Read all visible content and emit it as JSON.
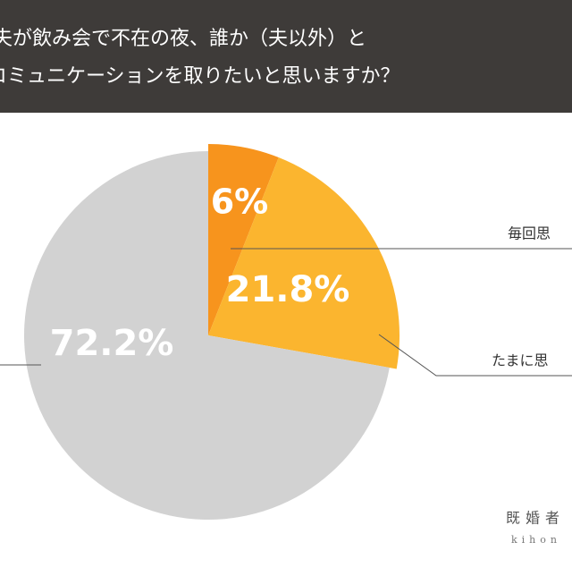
{
  "chart_data": {
    "type": "pie",
    "title_lines": [
      "夫が飲み会で不在の夜、誰か（夫以外）と",
      "コミュニケーションを取りたいと思いますか？"
    ],
    "categories": [
      "毎回思",
      "たまに思",
      null
    ],
    "values": [
      6,
      21.8,
      72.2
    ],
    "value_labels": [
      "6%",
      "21.8%",
      "72.2%"
    ],
    "colors": [
      "#f7941d",
      "#fbb52f",
      "#d2d2d2"
    ],
    "watermark": [
      "既婚者",
      "kihon"
    ]
  }
}
